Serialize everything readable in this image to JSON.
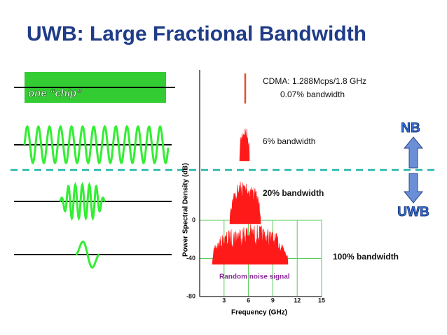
{
  "title": "UWB: Large Fractional Bandwidth",
  "chip_label": "one “chip”",
  "chart": {
    "ylabel": "Power Spectral Density (dB)",
    "xlabel": "Frequency (GHz)",
    "xlim": [
      0,
      15
    ],
    "xticks": [
      3,
      6,
      9,
      12,
      15
    ],
    "ylim": [
      -80,
      0
    ],
    "yticks": [
      0,
      -40,
      -80
    ],
    "cdma_label": "CDMA: 1.288Mcps/1.8 GHz",
    "cdma_bw": "0.07% bandwidth",
    "bw6": "6% bandwidth",
    "bw20": "20% bandwidth",
    "bw100": "100% bandwidth",
    "noise": "Random noise signal"
  },
  "nb": "NB",
  "uwb": "UWB"
}
